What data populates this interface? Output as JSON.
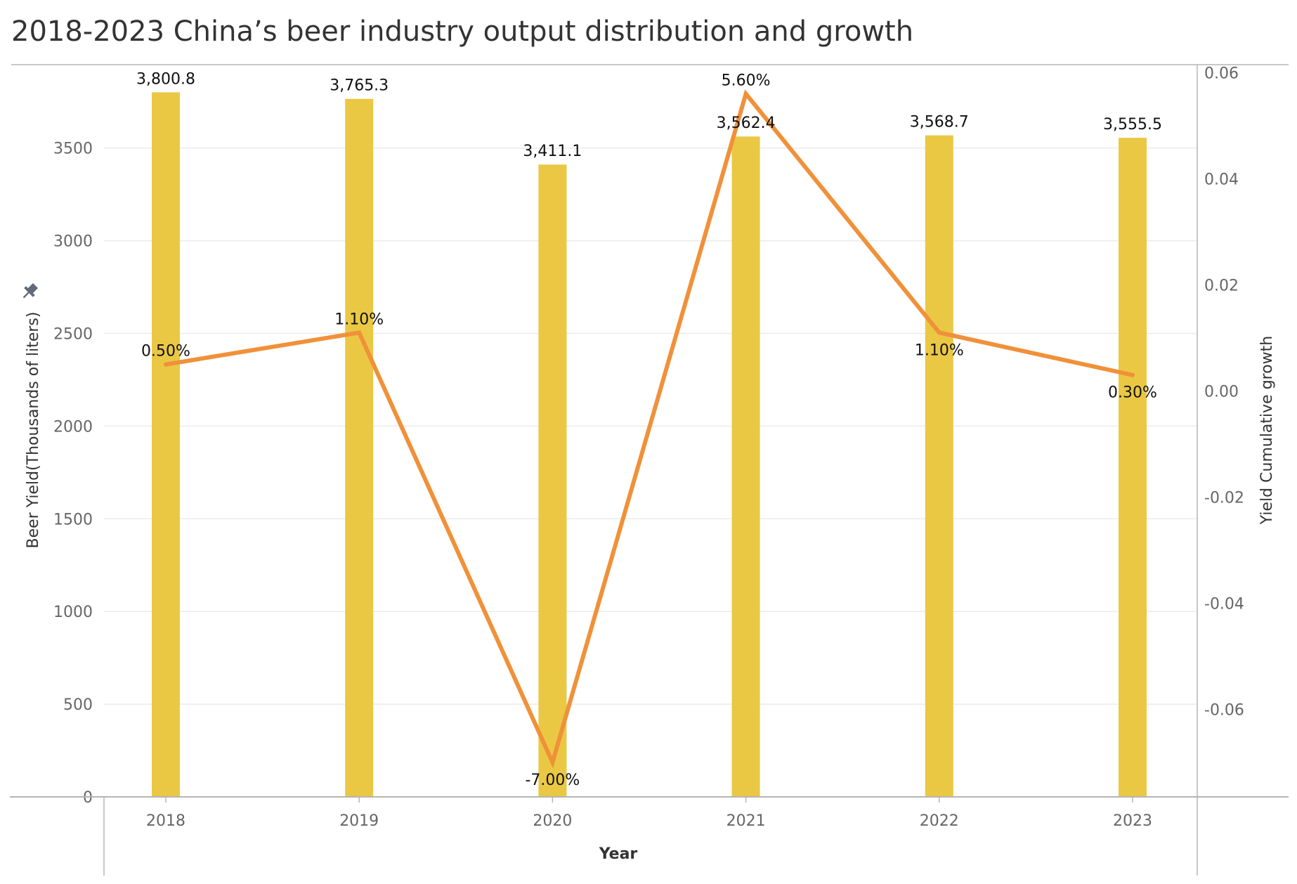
{
  "title": "2018-2023 China’s beer industry output distribution and growth",
  "chart_data": {
    "type": "bar",
    "categories": [
      "2018",
      "2019",
      "2020",
      "2021",
      "2022",
      "2023"
    ],
    "series": [
      {
        "name": "Beer Yield(Thousands of liters)",
        "type": "bar",
        "axis": "left",
        "values": [
          3800.8,
          3765.3,
          3411.1,
          3562.4,
          3568.7,
          3555.5
        ],
        "labels": [
          "3,800.8",
          "3,765.3",
          "3,411.1",
          "3,562.4",
          "3,568.7",
          "3,555.5"
        ]
      },
      {
        "name": "Yield Cumulative growth",
        "type": "line",
        "axis": "right",
        "values": [
          0.005,
          0.011,
          -0.07,
          0.056,
          0.011,
          0.003
        ],
        "labels": [
          "0.50%",
          "1.10%",
          "-7.00%",
          "5.60%",
          "1.10%",
          "0.30%"
        ],
        "label_positions": [
          "above",
          "above",
          "below",
          "above",
          "below",
          "below"
        ]
      }
    ],
    "xlabel": "Year",
    "ylabel": "Beer Yield(Thousands of liters)",
    "y2label": "Yield Cumulative growth",
    "ylim": [
      0,
      3950
    ],
    "yticks": [
      "0",
      "500",
      "1000",
      "1500",
      "2000",
      "2500",
      "3000",
      "3500"
    ],
    "y2lim": [
      -0.0765,
      0.0615
    ],
    "y2ticks": [
      "-0.06",
      "-0.04",
      "-0.02",
      "0.00",
      "0.02",
      "0.04",
      "0.06"
    ],
    "grid": true,
    "colors": {
      "bar": "#EAC844",
      "line": "#F0913A",
      "grid": "#ebebeb",
      "axis": "#c8c8c8"
    }
  }
}
